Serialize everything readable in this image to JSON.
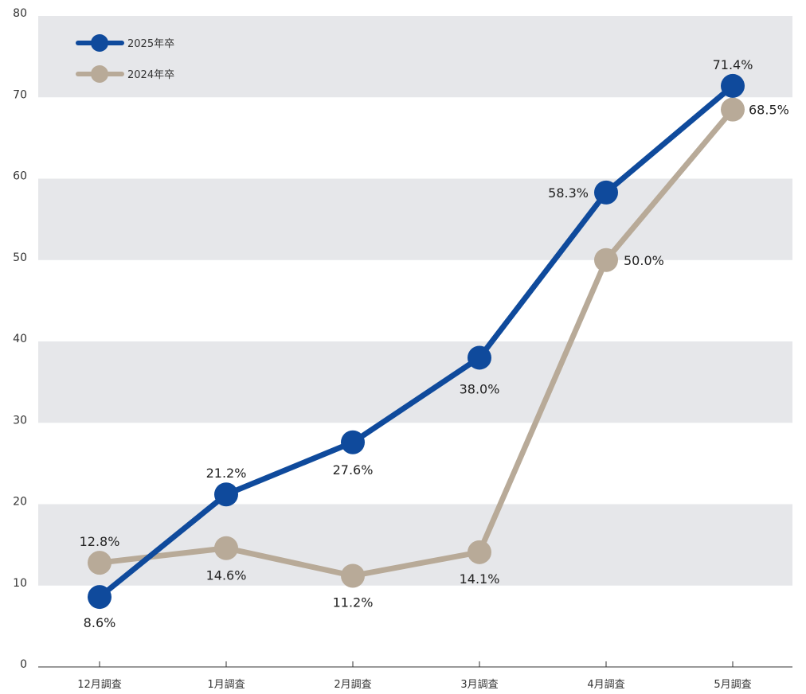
{
  "chart_data": {
    "type": "line",
    "categories": [
      "12月調査",
      "1月調査",
      "2月調査",
      "3月調査",
      "4月調査",
      "5月調査"
    ],
    "series": [
      {
        "name": "2025年卒",
        "values": [
          8.6,
          21.2,
          27.6,
          38.0,
          58.3,
          71.4
        ],
        "labels": [
          "8.6%",
          "21.2%",
          "27.6%",
          "38.0%",
          "58.3%",
          "71.4%"
        ],
        "color": "#0f4a9c"
      },
      {
        "name": "2024年卒",
        "values": [
          12.8,
          14.6,
          11.2,
          14.1,
          50.0,
          68.5
        ],
        "labels": [
          "12.8%",
          "14.6%",
          "11.2%",
          "14.1%",
          "50.0%",
          "68.5%"
        ],
        "color": "#b8aa98"
      }
    ],
    "y_ticks": [
      "0",
      "10",
      "20",
      "30",
      "40",
      "50",
      "60",
      "70",
      "80"
    ],
    "ylim": [
      0,
      80
    ],
    "grid": "alternating horizontal bands",
    "band_color": "#e6e7ea",
    "legend": "top-left",
    "title": "",
    "xlabel": "",
    "ylabel": ""
  }
}
